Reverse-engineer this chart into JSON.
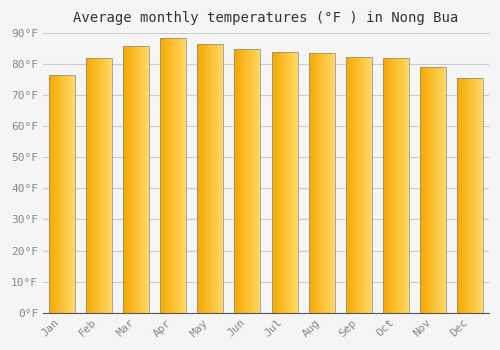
{
  "title": "Average monthly temperatures (°F ) in Nong Bua",
  "months": [
    "Jan",
    "Feb",
    "Mar",
    "Apr",
    "May",
    "Jun",
    "Jul",
    "Aug",
    "Sep",
    "Oct",
    "Nov",
    "Dec"
  ],
  "values": [
    76.5,
    82.0,
    86.0,
    88.5,
    86.5,
    85.0,
    84.0,
    83.5,
    82.5,
    82.0,
    79.0,
    75.5
  ],
  "bar_color_left": "#F5A800",
  "bar_color_right": "#FFD966",
  "bar_edge_color": "#888888",
  "background_color": "#F5F5F5",
  "grid_color": "#CCCCCC",
  "ylim": [
    0,
    90
  ],
  "yticks": [
    0,
    10,
    20,
    30,
    40,
    50,
    60,
    70,
    80,
    90
  ],
  "title_fontsize": 10,
  "tick_fontsize": 8,
  "bar_width": 0.7,
  "figsize": [
    5.0,
    3.5
  ],
  "dpi": 100
}
